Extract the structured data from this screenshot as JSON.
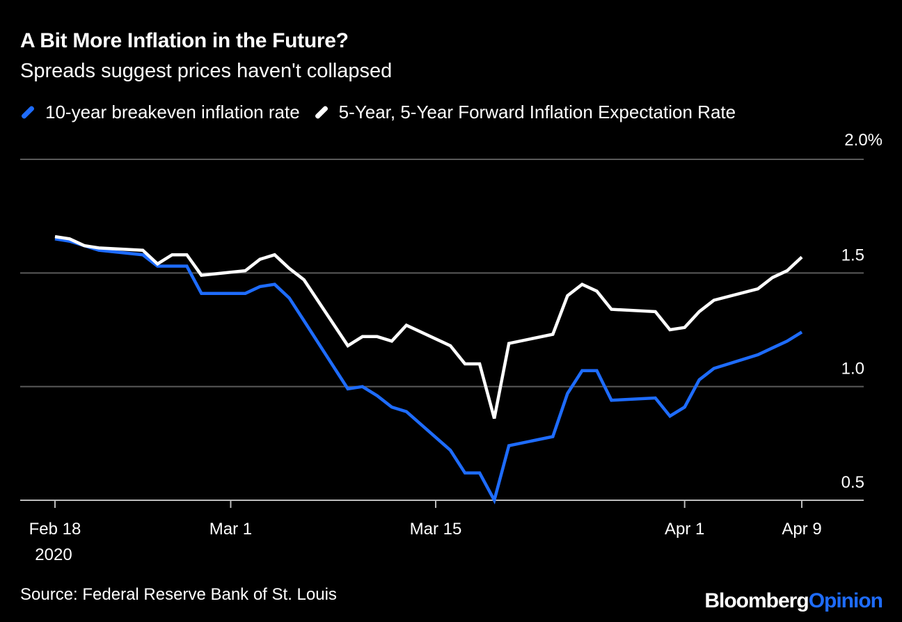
{
  "header": {
    "title": "A Bit More Inflation in the Future?",
    "subtitle": "Spreads suggest prices haven't collapsed"
  },
  "footer": {
    "source": "Source: Federal Reserve Bank of St. Louis",
    "brand_part1": "Bloomberg",
    "brand_part2": "Opinion"
  },
  "colors": {
    "background": "#000000",
    "series_blue": "#1e6cff",
    "series_white": "#ffffff",
    "grid": "#5a5a5a"
  },
  "chart_data": {
    "type": "line",
    "ylim": [
      0.5,
      2.0
    ],
    "yticks": [
      2.0,
      1.5,
      1.0,
      0.5
    ],
    "ytick_labels": [
      "2.0%",
      "1.5",
      "1.0",
      "0.5"
    ],
    "y_axis_position": "right",
    "grid": true,
    "legend_position": "top-left",
    "x_ticks": [
      {
        "date": "2020-02-18",
        "label": "Feb 18",
        "sublabel": "2020"
      },
      {
        "date": "2020-03-01",
        "label": "Mar 1",
        "sublabel": ""
      },
      {
        "date": "2020-03-15",
        "label": "Mar 15",
        "sublabel": ""
      },
      {
        "date": "2020-04-01",
        "label": "Apr 1",
        "sublabel": ""
      },
      {
        "date": "2020-04-09",
        "label": "Apr 9",
        "sublabel": ""
      }
    ],
    "series": [
      {
        "name": "10-year breakeven inflation rate",
        "color": "#1e6cff",
        "points": [
          [
            "2020-02-18",
            1.65
          ],
          [
            "2020-02-19",
            1.64
          ],
          [
            "2020-02-20",
            1.62
          ],
          [
            "2020-02-21",
            1.6
          ],
          [
            "2020-02-24",
            1.58
          ],
          [
            "2020-02-25",
            1.53
          ],
          [
            "2020-02-26",
            1.53
          ],
          [
            "2020-02-27",
            1.53
          ],
          [
            "2020-02-28",
            1.41
          ],
          [
            "2020-03-02",
            1.41
          ],
          [
            "2020-03-03",
            1.44
          ],
          [
            "2020-03-04",
            1.45
          ],
          [
            "2020-03-05",
            1.39
          ],
          [
            "2020-03-06",
            1.29
          ],
          [
            "2020-03-09",
            0.99
          ],
          [
            "2020-03-10",
            1.0
          ],
          [
            "2020-03-11",
            0.96
          ],
          [
            "2020-03-12",
            0.91
          ],
          [
            "2020-03-13",
            0.89
          ],
          [
            "2020-03-16",
            0.72
          ],
          [
            "2020-03-17",
            0.62
          ],
          [
            "2020-03-18",
            0.62
          ],
          [
            "2020-03-19",
            0.5
          ],
          [
            "2020-03-20",
            0.74
          ],
          [
            "2020-03-23",
            0.78
          ],
          [
            "2020-03-24",
            0.97
          ],
          [
            "2020-03-25",
            1.07
          ],
          [
            "2020-03-26",
            1.07
          ],
          [
            "2020-03-27",
            0.94
          ],
          [
            "2020-03-30",
            0.95
          ],
          [
            "2020-03-31",
            0.87
          ],
          [
            "2020-04-01",
            0.91
          ],
          [
            "2020-04-02",
            1.03
          ],
          [
            "2020-04-03",
            1.08
          ],
          [
            "2020-04-06",
            1.14
          ],
          [
            "2020-04-07",
            1.17
          ],
          [
            "2020-04-08",
            1.2
          ],
          [
            "2020-04-09",
            1.24
          ]
        ]
      },
      {
        "name": "5-Year, 5-Year Forward Inflation Expectation Rate",
        "color": "#ffffff",
        "points": [
          [
            "2020-02-18",
            1.66
          ],
          [
            "2020-02-19",
            1.65
          ],
          [
            "2020-02-20",
            1.62
          ],
          [
            "2020-02-21",
            1.61
          ],
          [
            "2020-02-24",
            1.6
          ],
          [
            "2020-02-25",
            1.54
          ],
          [
            "2020-02-26",
            1.58
          ],
          [
            "2020-02-27",
            1.58
          ],
          [
            "2020-02-28",
            1.49
          ],
          [
            "2020-03-02",
            1.51
          ],
          [
            "2020-03-03",
            1.56
          ],
          [
            "2020-03-04",
            1.58
          ],
          [
            "2020-03-05",
            1.52
          ],
          [
            "2020-03-06",
            1.47
          ],
          [
            "2020-03-09",
            1.18
          ],
          [
            "2020-03-10",
            1.22
          ],
          [
            "2020-03-11",
            1.22
          ],
          [
            "2020-03-12",
            1.2
          ],
          [
            "2020-03-13",
            1.27
          ],
          [
            "2020-03-16",
            1.18
          ],
          [
            "2020-03-17",
            1.1
          ],
          [
            "2020-03-18",
            1.1
          ],
          [
            "2020-03-19",
            0.86
          ],
          [
            "2020-03-20",
            1.19
          ],
          [
            "2020-03-23",
            1.23
          ],
          [
            "2020-03-24",
            1.4
          ],
          [
            "2020-03-25",
            1.45
          ],
          [
            "2020-03-26",
            1.42
          ],
          [
            "2020-03-27",
            1.34
          ],
          [
            "2020-03-30",
            1.33
          ],
          [
            "2020-03-31",
            1.25
          ],
          [
            "2020-04-01",
            1.26
          ],
          [
            "2020-04-02",
            1.33
          ],
          [
            "2020-04-03",
            1.38
          ],
          [
            "2020-04-06",
            1.43
          ],
          [
            "2020-04-07",
            1.48
          ],
          [
            "2020-04-08",
            1.51
          ],
          [
            "2020-04-09",
            1.57
          ]
        ]
      }
    ]
  }
}
